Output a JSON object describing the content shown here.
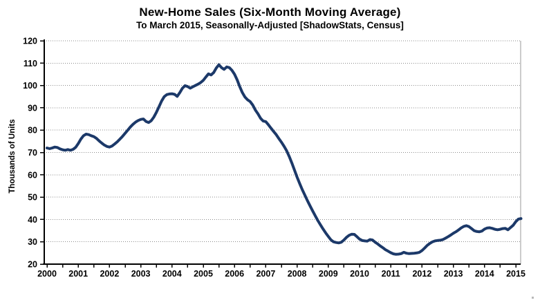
{
  "header": {
    "title": "New-Home Sales (Six-Month Moving Average)",
    "subtitle": "To March 2015, Seasonally-Adjusted [ShadowStats, Census]"
  },
  "chart_data": {
    "type": "line",
    "title": "New-Home Sales (Six-Month Moving Average)",
    "subtitle": "To March 2015, Seasonally-Adjusted [ShadowStats, Census]",
    "xlabel": "",
    "ylabel": "Thousands of Units",
    "ylim": [
      20,
      120
    ],
    "yticks": [
      20,
      30,
      40,
      50,
      60,
      70,
      80,
      90,
      100,
      110,
      120
    ],
    "xticks": [
      2000,
      2001,
      2002,
      2003,
      2004,
      2005,
      2006,
      2007,
      2008,
      2009,
      2010,
      2011,
      2012,
      2013,
      2014,
      2015
    ],
    "xtick_minor_interval_years": 0.5,
    "grid": "horizontal dotted",
    "legend": "none",
    "line_color": "#1c3969",
    "axis_color": "#000000",
    "grid_color": "#8a8a8a",
    "frequency": "monthly",
    "x_start": "2000-01",
    "x_end": "2015-03",
    "series": [
      {
        "name": "New-home sales six-month moving average (thousands of units)",
        "values": [
          72.0,
          71.7,
          72.0,
          72.4,
          72.2,
          71.6,
          71.2,
          71.0,
          71.3,
          71.0,
          71.4,
          72.3,
          74.0,
          76.0,
          77.5,
          78.2,
          78.0,
          77.5,
          77.1,
          76.3,
          75.2,
          74.2,
          73.3,
          72.7,
          72.4,
          72.9,
          73.8,
          74.8,
          76.0,
          77.2,
          78.6,
          80.0,
          81.4,
          82.6,
          83.6,
          84.3,
          84.8,
          85.0,
          83.9,
          83.4,
          84.2,
          85.8,
          88.0,
          90.5,
          93.0,
          95.0,
          95.9,
          96.2,
          96.3,
          96.0,
          95.1,
          96.8,
          98.8,
          99.9,
          99.5,
          98.8,
          99.4,
          100.0,
          100.6,
          101.3,
          102.3,
          103.8,
          105.2,
          104.7,
          105.8,
          107.8,
          109.3,
          108.0,
          107.2,
          108.3,
          108.0,
          106.8,
          105.0,
          102.5,
          99.5,
          96.8,
          94.8,
          93.6,
          92.8,
          91.2,
          89.0,
          87.3,
          85.3,
          84.1,
          83.8,
          82.4,
          80.9,
          79.4,
          78.0,
          76.3,
          74.6,
          72.8,
          70.8,
          68.2,
          65.3,
          62.2,
          59.0,
          56.1,
          53.4,
          50.9,
          48.4,
          46.1,
          43.8,
          41.6,
          39.5,
          37.6,
          35.7,
          34.0,
          32.4,
          30.9,
          30.0,
          29.7,
          29.5,
          29.8,
          30.8,
          32.0,
          32.9,
          33.4,
          33.3,
          32.3,
          31.2,
          30.6,
          30.4,
          30.3,
          31.0,
          30.8,
          29.8,
          29.0,
          28.1,
          27.3,
          26.4,
          25.8,
          25.1,
          24.6,
          24.4,
          24.5,
          24.7,
          25.3,
          24.9,
          24.7,
          24.8,
          24.9,
          25.0,
          25.3,
          26.1,
          27.2,
          28.4,
          29.3,
          30.0,
          30.4,
          30.6,
          30.7,
          31.0,
          31.6,
          32.3,
          33.0,
          33.8,
          34.5,
          35.3,
          36.2,
          36.9,
          37.2,
          36.8,
          35.9,
          35.0,
          34.6,
          34.5,
          34.8,
          35.7,
          36.2,
          36.3,
          36.0,
          35.6,
          35.4,
          35.6,
          35.9,
          36.0,
          35.4,
          36.4,
          37.4,
          39.0,
          40.2,
          40.4
        ]
      }
    ]
  }
}
